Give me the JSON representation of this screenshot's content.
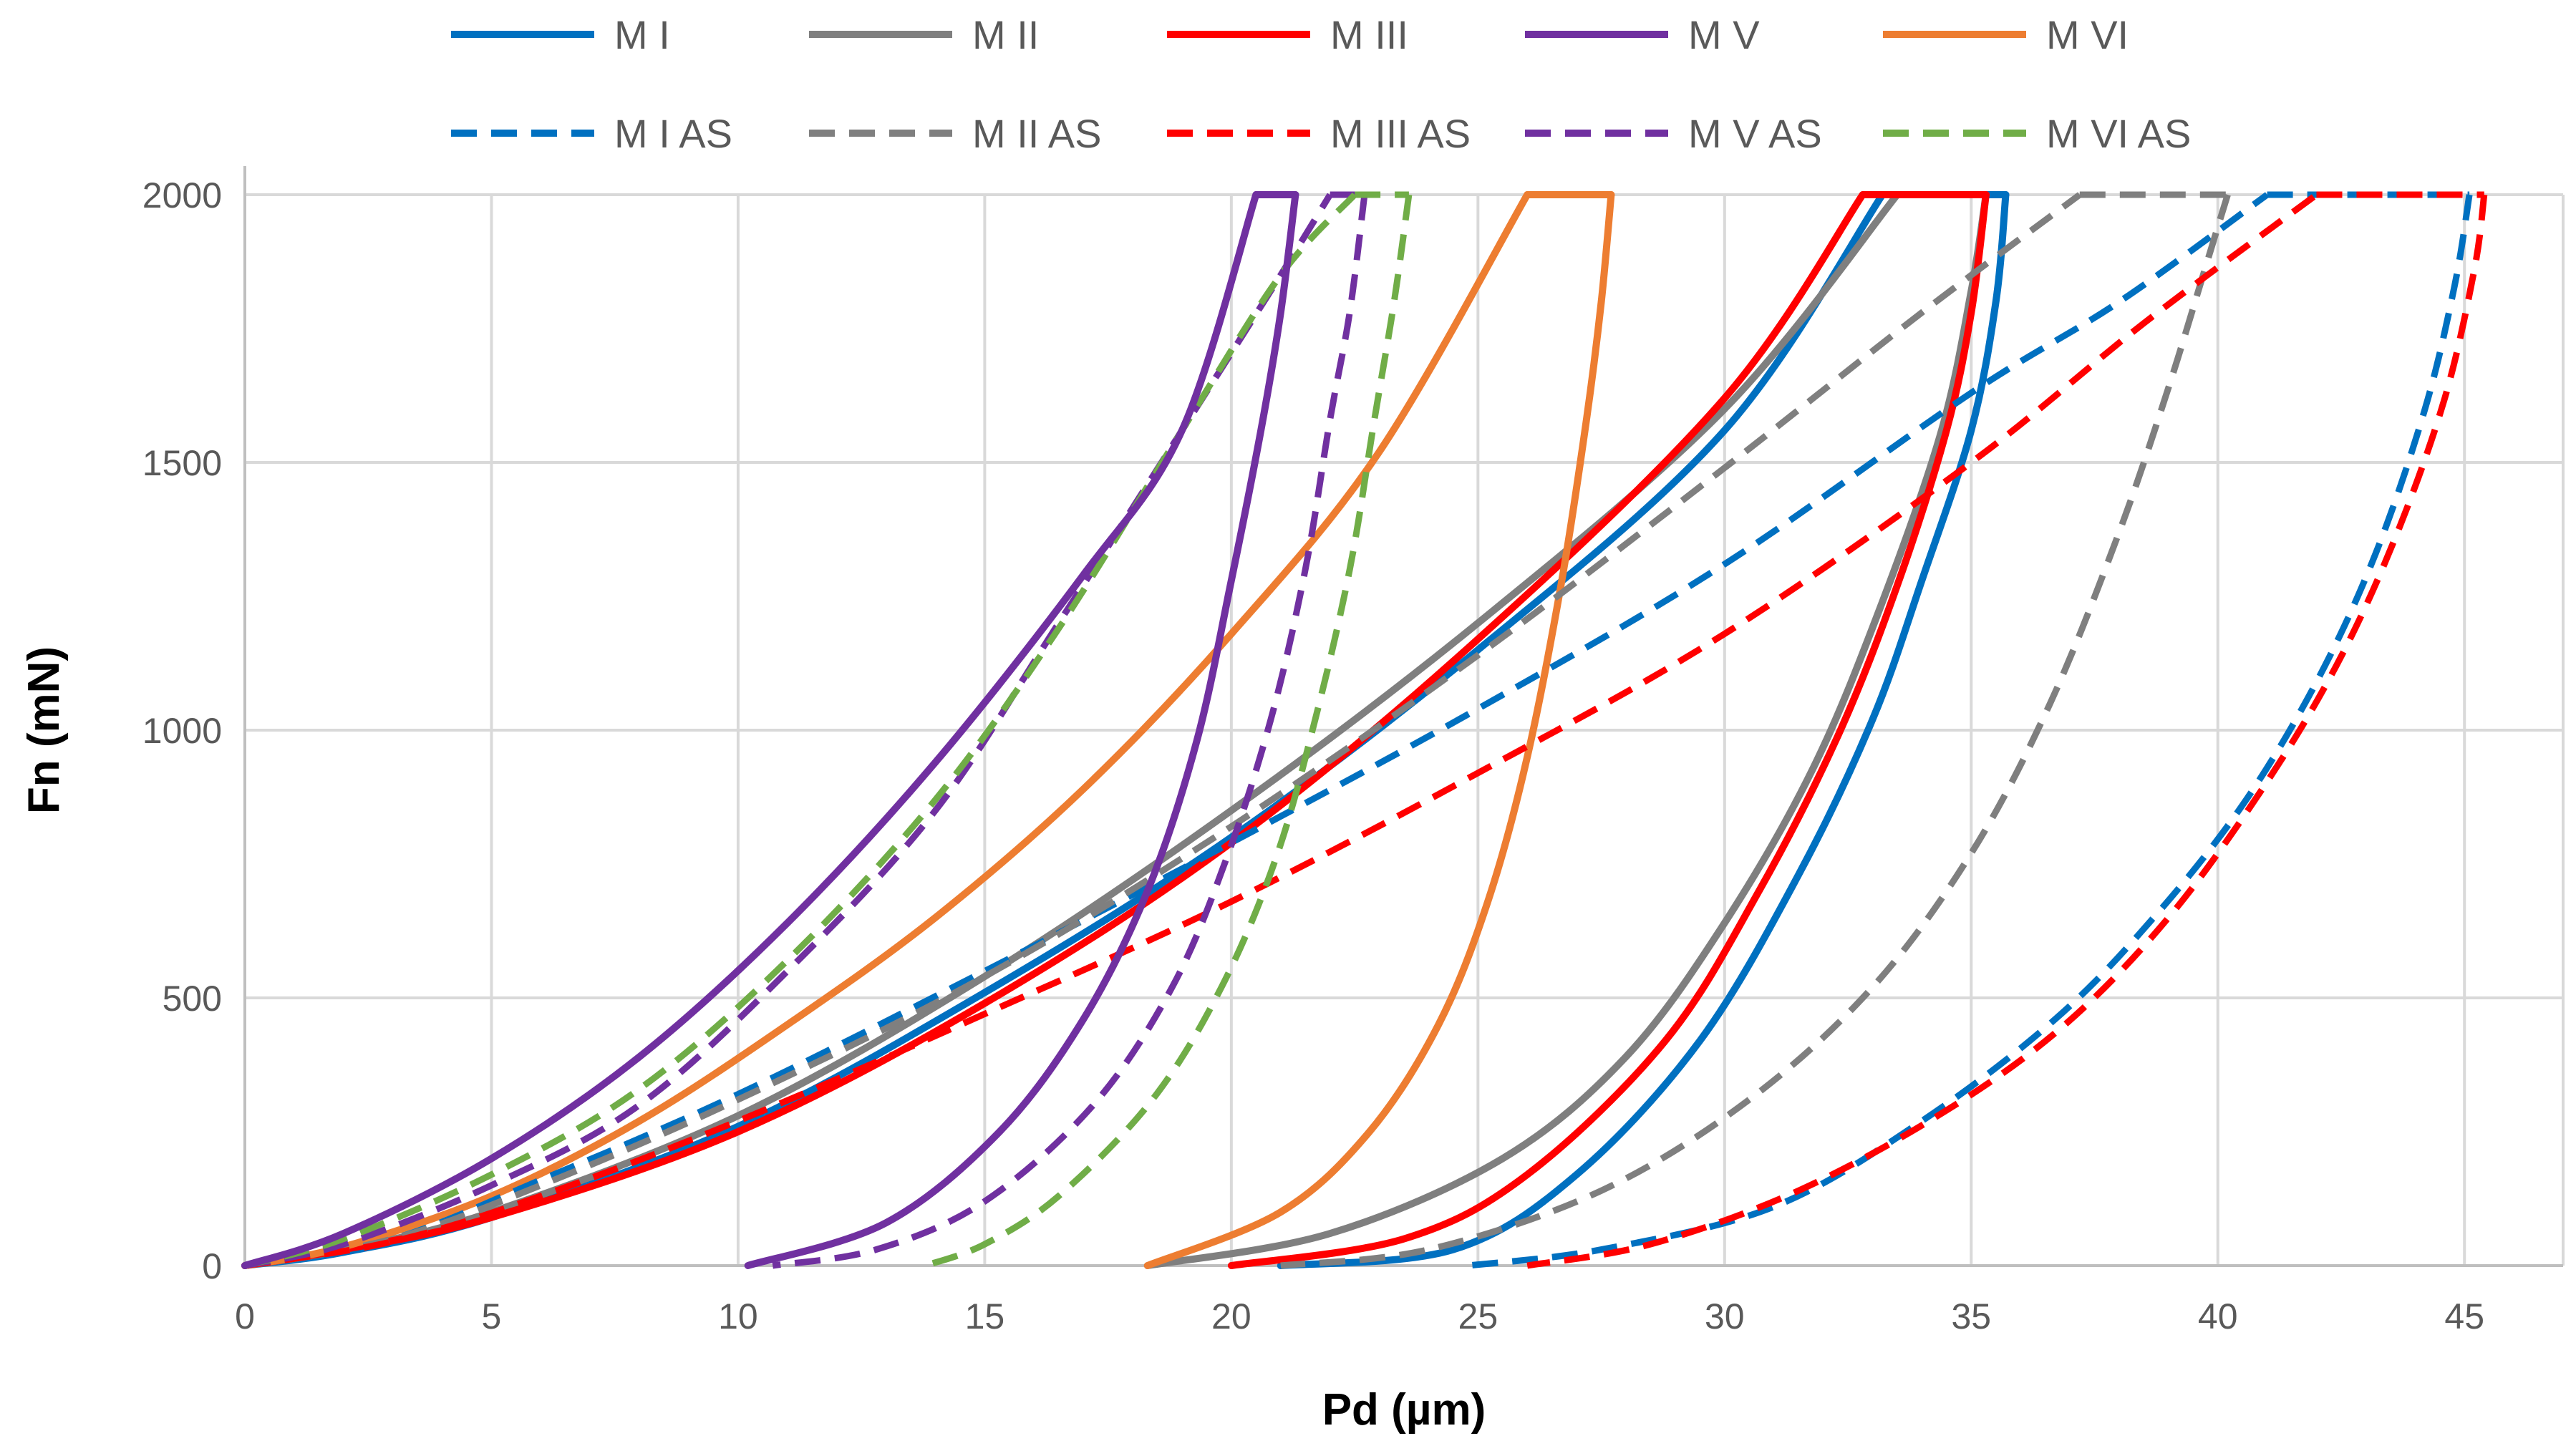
{
  "chart_data": {
    "type": "line",
    "title": "",
    "xlabel": "Pd (µm)",
    "ylabel": "Fn (mN)",
    "xlim": [
      0,
      47
    ],
    "ylim": [
      0,
      2000
    ],
    "xticks": [
      "0",
      "5",
      "10",
      "15",
      "20",
      "25",
      "30",
      "35",
      "40",
      "45"
    ],
    "yticks": [
      "0",
      "500",
      "1000",
      "1500",
      "2000"
    ],
    "grid": true,
    "legend_position": "top",
    "series": [
      {
        "name": "M I",
        "color": "#0070c0",
        "dash": "solid",
        "loading": [
          [
            0,
            0
          ],
          [
            2,
            25
          ],
          [
            5,
            90
          ],
          [
            10,
            260
          ],
          [
            15,
            510
          ],
          [
            20,
            800
          ],
          [
            25,
            1150
          ],
          [
            30,
            1560
          ],
          [
            33.2,
            2000
          ]
        ],
        "hold": [
          [
            33.2,
            2000
          ],
          [
            35.7,
            2000
          ]
        ],
        "unloading": [
          [
            35.7,
            2000
          ],
          [
            35.5,
            1800
          ],
          [
            35,
            1560
          ],
          [
            34,
            1280
          ],
          [
            33,
            1020
          ],
          [
            31.5,
            730
          ],
          [
            29.5,
            420
          ],
          [
            27,
            170
          ],
          [
            24.5,
            30
          ],
          [
            21,
            0
          ]
        ]
      },
      {
        "name": "M II",
        "color": "#7f7f7f",
        "dash": "solid",
        "loading": [
          [
            0,
            0
          ],
          [
            2,
            30
          ],
          [
            5,
            100
          ],
          [
            10,
            280
          ],
          [
            15,
            540
          ],
          [
            20,
            850
          ],
          [
            25,
            1200
          ],
          [
            30,
            1600
          ],
          [
            33.5,
            2000
          ]
        ],
        "hold": [
          [
            33.5,
            2000
          ],
          [
            35.3,
            2000
          ]
        ],
        "unloading": [
          [
            35.3,
            2000
          ],
          [
            35,
            1820
          ],
          [
            34.4,
            1560
          ],
          [
            33.2,
            1240
          ],
          [
            31.8,
            930
          ],
          [
            30,
            640
          ],
          [
            28,
            390
          ],
          [
            25.5,
            200
          ],
          [
            22,
            60
          ],
          [
            18.3,
            0
          ]
        ]
      },
      {
        "name": "M III",
        "color": "#ff0000",
        "dash": "solid",
        "loading": [
          [
            0,
            0
          ],
          [
            2,
            30
          ],
          [
            5,
            90
          ],
          [
            10,
            250
          ],
          [
            15,
            490
          ],
          [
            20,
            790
          ],
          [
            25,
            1170
          ],
          [
            30,
            1620
          ],
          [
            32.8,
            2000
          ]
        ],
        "hold": [
          [
            32.8,
            2000
          ],
          [
            35.3,
            2000
          ]
        ],
        "unloading": [
          [
            35.3,
            2000
          ],
          [
            35,
            1780
          ],
          [
            34.5,
            1560
          ],
          [
            33.5,
            1270
          ],
          [
            32.3,
            990
          ],
          [
            30.7,
            700
          ],
          [
            28.8,
            420
          ],
          [
            26,
            170
          ],
          [
            23.5,
            50
          ],
          [
            20,
            0
          ]
        ]
      },
      {
        "name": "M V",
        "color": "#7030a0",
        "dash": "solid",
        "loading": [
          [
            0,
            0
          ],
          [
            2,
            60
          ],
          [
            5,
            200
          ],
          [
            8,
            390
          ],
          [
            11,
            640
          ],
          [
            14,
            940
          ],
          [
            17,
            1290
          ],
          [
            19,
            1560
          ],
          [
            20.5,
            2000
          ]
        ],
        "hold": [
          [
            20.5,
            2000
          ],
          [
            21.3,
            2000
          ]
        ],
        "unloading": [
          [
            21.3,
            2000
          ],
          [
            21,
            1780
          ],
          [
            20.6,
            1560
          ],
          [
            20,
            1280
          ],
          [
            19.3,
            980
          ],
          [
            18.3,
            700
          ],
          [
            17,
            460
          ],
          [
            15.3,
            250
          ],
          [
            13,
            80
          ],
          [
            10.2,
            0
          ]
        ]
      },
      {
        "name": "M VI",
        "color": "#ed7d31",
        "dash": "solid",
        "loading": [
          [
            0,
            0
          ],
          [
            2,
            35
          ],
          [
            5,
            130
          ],
          [
            8,
            270
          ],
          [
            11,
            450
          ],
          [
            14,
            650
          ],
          [
            17,
            890
          ],
          [
            20,
            1180
          ],
          [
            23,
            1520
          ],
          [
            26,
            2000
          ]
        ],
        "hold": [
          [
            26,
            2000
          ],
          [
            27.7,
            2000
          ]
        ],
        "unloading": [
          [
            27.7,
            2000
          ],
          [
            27.5,
            1800
          ],
          [
            27.2,
            1580
          ],
          [
            26.7,
            1280
          ],
          [
            26,
            950
          ],
          [
            25.2,
            680
          ],
          [
            24.2,
            450
          ],
          [
            22.8,
            250
          ],
          [
            21,
            100
          ],
          [
            18.3,
            0
          ]
        ]
      },
      {
        "name": "M I AS",
        "color": "#0070c0",
        "dash": "dashed",
        "loading": [
          [
            0,
            0
          ],
          [
            3,
            50
          ],
          [
            6,
            160
          ],
          [
            10,
            320
          ],
          [
            15,
            550
          ],
          [
            20,
            790
          ],
          [
            25,
            1040
          ],
          [
            30,
            1310
          ],
          [
            35,
            1630
          ],
          [
            38,
            1800
          ],
          [
            41,
            2000
          ]
        ],
        "hold": [
          [
            41,
            2000
          ],
          [
            45.1,
            2000
          ]
        ],
        "unloading": [
          [
            45.1,
            2000
          ],
          [
            44.8,
            1830
          ],
          [
            44.2,
            1600
          ],
          [
            43.2,
            1330
          ],
          [
            42,
            1090
          ],
          [
            40.5,
            860
          ],
          [
            38.7,
            650
          ],
          [
            36.7,
            460
          ],
          [
            34,
            270
          ],
          [
            31,
            110
          ],
          [
            27.5,
            30
          ],
          [
            24.8,
            0
          ]
        ]
      },
      {
        "name": "M II AS",
        "color": "#7f7f7f",
        "dash": "dashed",
        "loading": [
          [
            0,
            0
          ],
          [
            3,
            50
          ],
          [
            6,
            150
          ],
          [
            10,
            310
          ],
          [
            15,
            540
          ],
          [
            20,
            820
          ],
          [
            25,
            1140
          ],
          [
            30,
            1490
          ],
          [
            34,
            1780
          ],
          [
            37.2,
            2000
          ]
        ],
        "hold": [
          [
            37.2,
            2000
          ],
          [
            40.2,
            2000
          ]
        ],
        "unloading": [
          [
            40.2,
            2000
          ],
          [
            39.8,
            1880
          ],
          [
            39,
            1640
          ],
          [
            38,
            1370
          ],
          [
            36.6,
            1050
          ],
          [
            35,
            770
          ],
          [
            33,
            520
          ],
          [
            30.5,
            310
          ],
          [
            27.5,
            140
          ],
          [
            24,
            30
          ],
          [
            21,
            0
          ]
        ]
      },
      {
        "name": "M III AS",
        "color": "#ff0000",
        "dash": "dashed",
        "loading": [
          [
            0,
            0
          ],
          [
            3,
            45
          ],
          [
            6,
            130
          ],
          [
            10,
            270
          ],
          [
            15,
            470
          ],
          [
            20,
            680
          ],
          [
            25,
            920
          ],
          [
            30,
            1180
          ],
          [
            35,
            1500
          ],
          [
            38.5,
            1760
          ],
          [
            42,
            2000
          ]
        ],
        "hold": [
          [
            42,
            2000
          ],
          [
            45.4,
            2000
          ]
        ],
        "unloading": [
          [
            45.4,
            2000
          ],
          [
            45.2,
            1860
          ],
          [
            44.6,
            1620
          ],
          [
            43.6,
            1360
          ],
          [
            42.4,
            1120
          ],
          [
            40.9,
            890
          ],
          [
            39,
            650
          ],
          [
            36.9,
            450
          ],
          [
            34.5,
            290
          ],
          [
            31.5,
            140
          ],
          [
            28.5,
            40
          ],
          [
            26,
            0
          ]
        ]
      },
      {
        "name": "M V AS",
        "color": "#7030a0",
        "dash": "dashed",
        "loading": [
          [
            0,
            0
          ],
          [
            2,
            40
          ],
          [
            5,
            150
          ],
          [
            8,
            300
          ],
          [
            11,
            550
          ],
          [
            14,
            850
          ],
          [
            16.5,
            1200
          ],
          [
            19,
            1560
          ],
          [
            21,
            1850
          ],
          [
            22,
            2000
          ]
        ],
        "hold": [
          [
            22,
            2000
          ],
          [
            22.7,
            2000
          ]
        ],
        "unloading": [
          [
            22.7,
            2000
          ],
          [
            22.4,
            1780
          ],
          [
            22,
            1580
          ],
          [
            21.5,
            1300
          ],
          [
            20.8,
            1020
          ],
          [
            19.9,
            760
          ],
          [
            18.8,
            520
          ],
          [
            17.2,
            300
          ],
          [
            15,
            120
          ],
          [
            12.8,
            30
          ],
          [
            10.7,
            0
          ]
        ]
      },
      {
        "name": "M VI AS",
        "color": "#70ad47",
        "dash": "dashed",
        "loading": [
          [
            0,
            0
          ],
          [
            2,
            50
          ],
          [
            5,
            170
          ],
          [
            8,
            330
          ],
          [
            11,
            570
          ],
          [
            14,
            870
          ],
          [
            16.5,
            1190
          ],
          [
            19,
            1560
          ],
          [
            21,
            1850
          ],
          [
            22.5,
            2000
          ]
        ],
        "hold": [
          [
            22.5,
            2000
          ],
          [
            23.6,
            2000
          ]
        ],
        "unloading": [
          [
            23.6,
            2000
          ],
          [
            23.3,
            1800
          ],
          [
            22.9,
            1580
          ],
          [
            22.4,
            1300
          ],
          [
            21.7,
            1020
          ],
          [
            20.9,
            760
          ],
          [
            19.8,
            520
          ],
          [
            18.4,
            310
          ],
          [
            16.5,
            130
          ],
          [
            15,
            40
          ],
          [
            13.8,
            0
          ]
        ]
      }
    ]
  }
}
